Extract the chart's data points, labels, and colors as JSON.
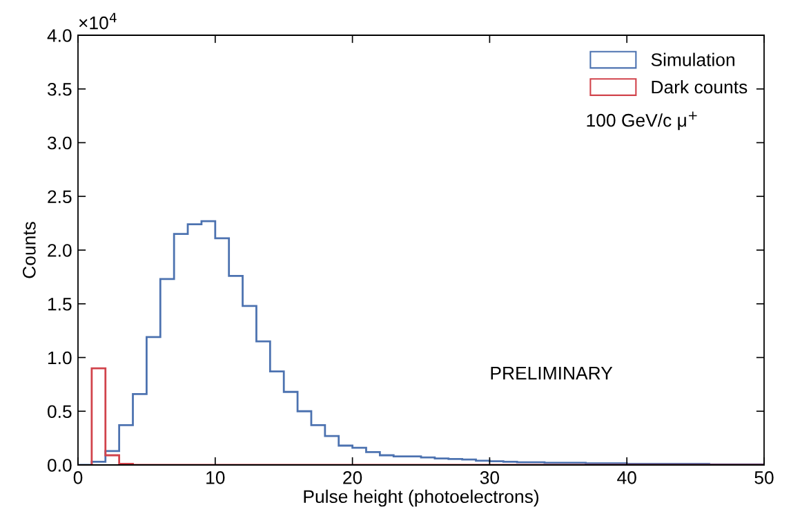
{
  "chart_data": {
    "type": "histogram",
    "xlabel": "Pulse height (photoelectrons)",
    "ylabel": "Counts",
    "bins": [
      0,
      1,
      2,
      3,
      4,
      5,
      6,
      7,
      8,
      9,
      10,
      11,
      12,
      13,
      14,
      15,
      16,
      17,
      18,
      19,
      20,
      21,
      22,
      23,
      24,
      25,
      26,
      27,
      28,
      29,
      30,
      31,
      32,
      33,
      34,
      35,
      36,
      37,
      38,
      39,
      40,
      41,
      42,
      43,
      44,
      45,
      46,
      47,
      48,
      49,
      50
    ],
    "series": [
      {
        "name": "Simulation",
        "color": "#4c72b0",
        "values": [
          0,
          0.03,
          0.13,
          0.37,
          0.66,
          1.19,
          1.73,
          2.15,
          2.24,
          2.27,
          2.11,
          1.76,
          1.48,
          1.15,
          0.87,
          0.68,
          0.5,
          0.37,
          0.27,
          0.18,
          0.16,
          0.12,
          0.09,
          0.08,
          0.08,
          0.07,
          0.06,
          0.055,
          0.05,
          0.04,
          0.035,
          0.03,
          0.025,
          0.025,
          0.02,
          0.02,
          0.02,
          0.015,
          0.015,
          0.015,
          0.01,
          0.01,
          0.01,
          0.01,
          0.01,
          0.01,
          0.005,
          0.005,
          0.005,
          0.005
        ]
      },
      {
        "name": "Dark counts",
        "color": "#d1434b",
        "bins": [
          1,
          2,
          3,
          4,
          5,
          6,
          7,
          8,
          9,
          10,
          11,
          12,
          13,
          14,
          15,
          16,
          17,
          18,
          19,
          20,
          21,
          22,
          23,
          24,
          25,
          26,
          27,
          28,
          29,
          30,
          31,
          32,
          33,
          34,
          35,
          36,
          37,
          38,
          39,
          40,
          41,
          42,
          43,
          44,
          45,
          46,
          47,
          48,
          49,
          50
        ],
        "values": [
          0.9,
          0.09,
          0.01,
          0,
          0,
          0,
          0,
          0,
          0,
          0,
          0,
          0,
          0,
          0,
          0,
          0,
          0,
          0,
          0,
          0,
          0,
          0,
          0,
          0,
          0,
          0,
          0,
          0,
          0,
          0,
          0,
          0,
          0,
          0,
          0,
          0,
          0,
          0,
          0,
          0,
          0,
          0,
          0,
          0,
          0,
          0,
          0,
          0,
          0
        ]
      }
    ],
    "xlim": [
      0,
      50
    ],
    "xticks": [
      0,
      10,
      20,
      30,
      40,
      50
    ],
    "ylim": [
      0,
      4.0
    ],
    "yticks": [
      {
        "value": 0,
        "label": "0.0"
      },
      {
        "value": 0.5,
        "label": "0.5"
      },
      {
        "value": 1,
        "label": "1.0"
      },
      {
        "value": 1.5,
        "label": "1.5"
      },
      {
        "value": 2,
        "label": "2.0"
      },
      {
        "value": 2.5,
        "label": "2.5"
      },
      {
        "value": 3,
        "label": "3.0"
      },
      {
        "value": 3.5,
        "label": "3.5"
      },
      {
        "value": 4,
        "label": "4.0"
      }
    ],
    "grid": false,
    "legend": "top right",
    "annotations": [
      "×10$^{4}$",
      "100 GeV/c μ$^{+}$",
      "PRELIMINARY"
    ]
  }
}
